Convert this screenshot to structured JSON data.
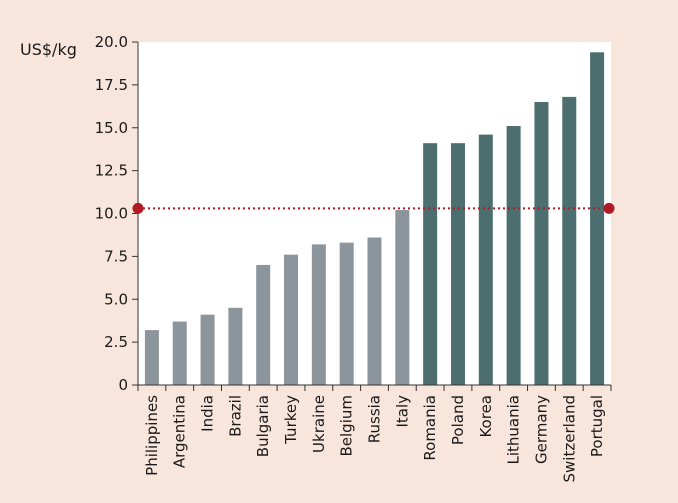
{
  "chart_data": {
    "type": "bar",
    "ylabel": "US$/kg",
    "ylim": [
      0,
      20
    ],
    "yticks": [
      "0",
      "2.5",
      "5.0",
      "7.5",
      "10.0",
      "12.5",
      "15.0",
      "17.5",
      "20.0"
    ],
    "categories": [
      "Philippines",
      "Argentina",
      "India",
      "Brazil",
      "Bulgaria",
      "Turkey",
      "Ukraine",
      "Belgium",
      "Russia",
      "Italy",
      "Romania",
      "Poland",
      "Korea",
      "Lithuania",
      "Germany",
      "Switzerland",
      "Portugal"
    ],
    "values": [
      3.2,
      3.7,
      4.1,
      4.5,
      7.0,
      7.6,
      8.2,
      8.3,
      8.6,
      10.2,
      14.1,
      14.1,
      14.6,
      15.1,
      16.5,
      16.8,
      19.4
    ],
    "bar_colors": [
      "#8c949c",
      "#8c949c",
      "#8c949c",
      "#8c949c",
      "#8c949c",
      "#8c949c",
      "#8c949c",
      "#8c949c",
      "#8c949c",
      "#8c949c",
      "#4d6e6e",
      "#4d6e6e",
      "#4d6e6e",
      "#4d6e6e",
      "#4d6e6e",
      "#4d6e6e",
      "#4d6e6e"
    ],
    "reference_line": {
      "value": 10.3,
      "style": "dotted",
      "color": "#b01a24"
    },
    "plot_background": "#ffffff",
    "grid": false
  }
}
